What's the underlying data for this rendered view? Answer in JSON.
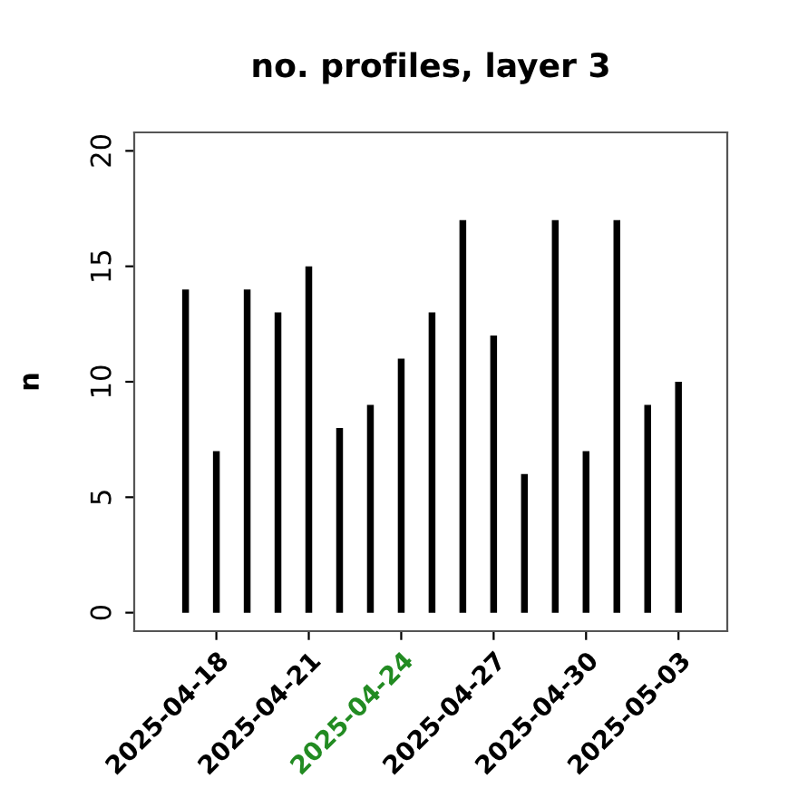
{
  "chart_data": {
    "type": "bar",
    "title": "no. profiles, layer 3",
    "ylabel": "n",
    "x": [
      "2025-04-17",
      "2025-04-18",
      "2025-04-19",
      "2025-04-20",
      "2025-04-21",
      "2025-04-22",
      "2025-04-23",
      "2025-04-24",
      "2025-04-25",
      "2025-04-26",
      "2025-04-27",
      "2025-04-28",
      "2025-04-29",
      "2025-04-30",
      "2025-05-01",
      "2025-05-02",
      "2025-05-03"
    ],
    "values": [
      14,
      7,
      14,
      13,
      15,
      8,
      9,
      11,
      13,
      17,
      12,
      6,
      17,
      7,
      17,
      9,
      10
    ],
    "color": "#000000",
    "xlim": [
      "2025-04-15T08:00",
      "2025-05-04T14:00"
    ],
    "xticks": [
      "2025-04-18",
      "2025-04-21",
      "2025-04-24",
      "2025-04-27",
      "2025-04-30",
      "2025-05-03"
    ],
    "ylim": [
      -0.8,
      20.8
    ],
    "yticks": [
      0,
      5,
      10,
      15,
      20
    ],
    "grid": false,
    "legend": false
  }
}
